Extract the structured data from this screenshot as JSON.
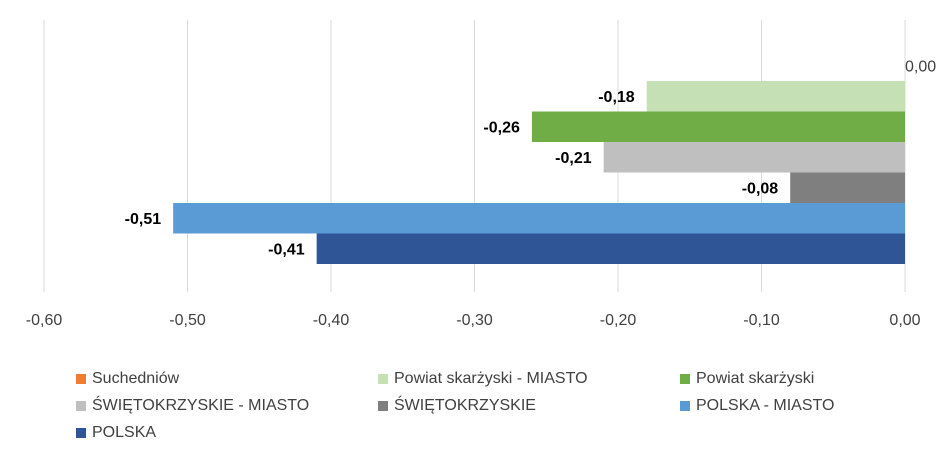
{
  "chart_data": {
    "type": "bar",
    "orientation": "horizontal",
    "xlim": [
      -0.6,
      0.0
    ],
    "x_ticks": [
      "-0,60",
      "-0,50",
      "-0,40",
      "-0,30",
      "-0,20",
      "-0,10",
      "0,00"
    ],
    "grid": true,
    "legend_position": "bottom",
    "series": [
      {
        "name": "Suchedniów",
        "value": 0.0,
        "label": "0,00",
        "color": "#ED7D31"
      },
      {
        "name": "Powiat skarżyski - MIASTO",
        "value": -0.18,
        "label": "-0,18",
        "color": "#C5E0B4"
      },
      {
        "name": "Powiat skarżyski",
        "value": -0.26,
        "label": "-0,26",
        "color": "#70AD47"
      },
      {
        "name": "ŚWIĘTOKRZYSKIE - MIASTO",
        "value": -0.21,
        "label": "-0,21",
        "color": "#BFBFBF"
      },
      {
        "name": "ŚWIĘTOKRZYSKIE",
        "value": -0.08,
        "label": "-0,08",
        "color": "#7F7F7F"
      },
      {
        "name": "POLSKA - MIASTO",
        "value": -0.51,
        "label": "-0,51",
        "color": "#5B9BD5"
      },
      {
        "name": "POLSKA",
        "value": -0.41,
        "label": "-0,41",
        "color": "#2F5597"
      }
    ]
  }
}
